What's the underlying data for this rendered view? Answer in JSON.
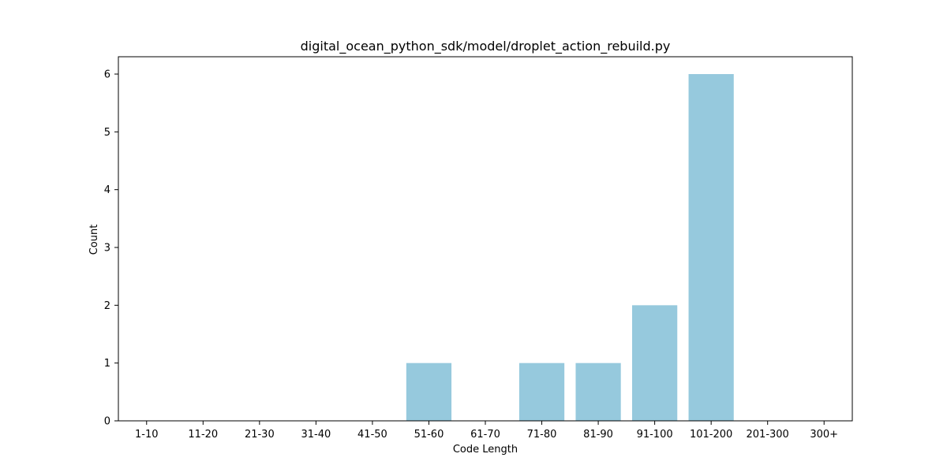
{
  "chart_data": {
    "type": "bar",
    "title": "digital_ocean_python_sdk/model/droplet_action_rebuild.py",
    "xlabel": "Code Length",
    "ylabel": "Count",
    "categories": [
      "1-10",
      "11-20",
      "21-30",
      "31-40",
      "41-50",
      "51-60",
      "61-70",
      "71-80",
      "81-90",
      "91-100",
      "101-200",
      "201-300",
      "300+"
    ],
    "values": [
      0,
      0,
      0,
      0,
      0,
      1,
      0,
      1,
      1,
      2,
      6,
      0,
      0
    ],
    "ylim": [
      0,
      6.3
    ],
    "yticks": [
      0,
      1,
      2,
      3,
      4,
      5,
      6
    ],
    "grid": false,
    "legend": "none",
    "bar_color": "#96c9dd",
    "axis_color": "#000000"
  }
}
